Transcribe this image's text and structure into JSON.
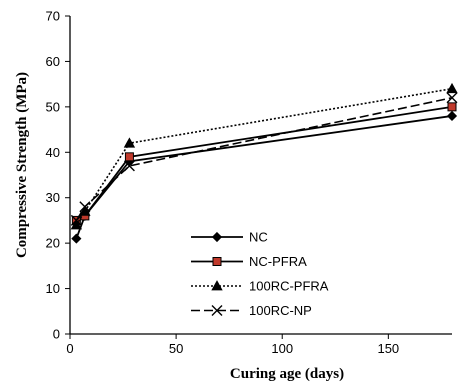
{
  "chart_data": {
    "type": "line",
    "title": "",
    "xlabel": "Curing age (days)",
    "ylabel": "Compressive Strength (MPa)",
    "xlim": [
      0,
      180
    ],
    "ylim": [
      0,
      70
    ],
    "xticks": [
      0,
      50,
      100,
      150
    ],
    "yticks": [
      0,
      10,
      20,
      30,
      40,
      50,
      60,
      70
    ],
    "grid": false,
    "legend_position": "center-bottom",
    "x": [
      3,
      7,
      28,
      180
    ],
    "series": [
      {
        "name": "NC",
        "values": [
          21,
          26,
          38,
          48
        ],
        "marker": "diamond",
        "line_style": "solid",
        "color": "#000000",
        "marker_fill": "#000000"
      },
      {
        "name": "NC-PFRA",
        "values": [
          25,
          26,
          39,
          50
        ],
        "marker": "square",
        "line_style": "solid",
        "color": "#000000",
        "marker_fill": "#c0392b"
      },
      {
        "name": "100RC-PFRA",
        "values": [
          24,
          27,
          42,
          54
        ],
        "marker": "triangle",
        "line_style": "dotted",
        "color": "#000000",
        "marker_fill": "#000000"
      },
      {
        "name": "100RC-NP",
        "values": [
          25,
          28,
          37,
          52
        ],
        "marker": "x",
        "line_style": "dashed",
        "color": "#000000",
        "marker_fill": "#000000"
      }
    ]
  }
}
